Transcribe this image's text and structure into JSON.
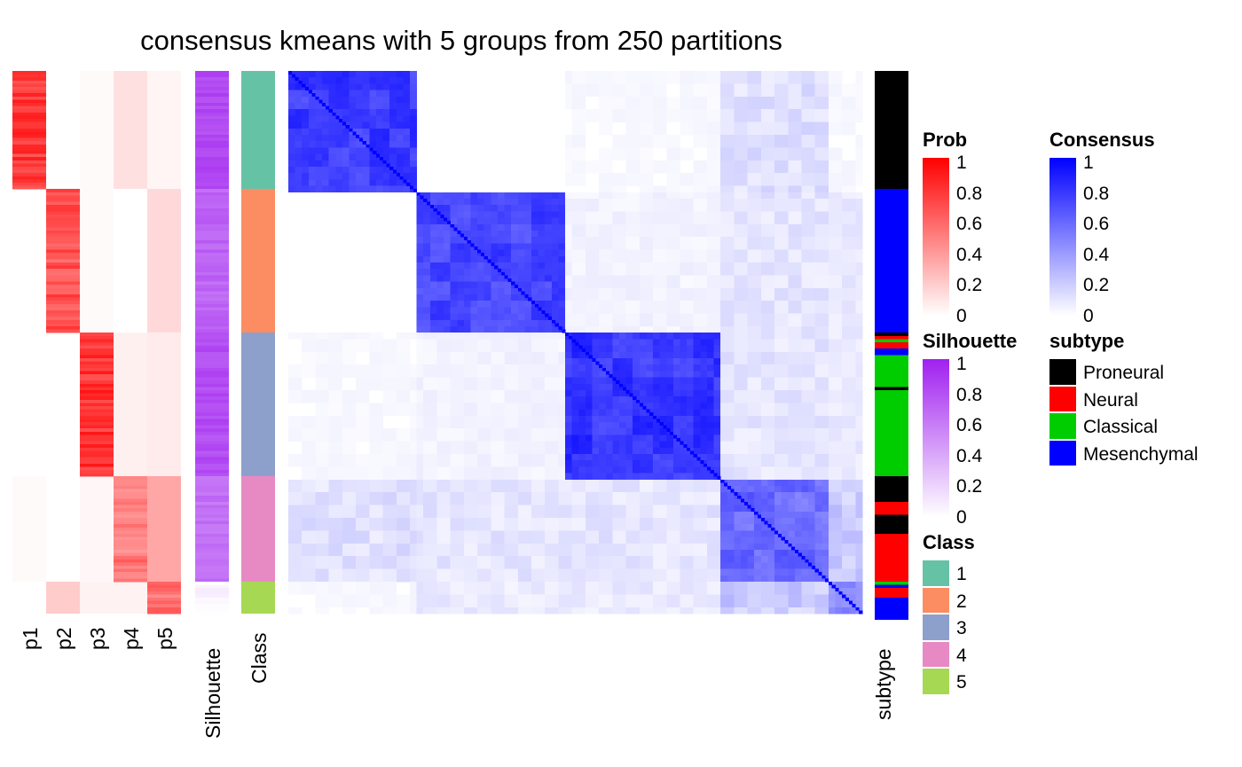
{
  "title": "consensus kmeans with 5 groups from 250 partitions",
  "chart_data": {
    "type": "heatmap",
    "title": "consensus kmeans with 5 groups from 250 partitions",
    "n_samples": 170,
    "class_sizes": [
      37,
      45,
      45,
      33,
      10
    ],
    "class_colors": [
      "#66C2A5",
      "#FC8D62",
      "#8DA0CB",
      "#E78AC3",
      "#A6D854"
    ],
    "prob_columns": [
      "p1",
      "p2",
      "p3",
      "p4",
      "p5"
    ],
    "prob_per_class": [
      [
        0.9,
        0.0,
        0.02,
        0.12,
        0.04
      ],
      [
        0.0,
        0.8,
        0.02,
        0.0,
        0.15
      ],
      [
        0.0,
        0.0,
        0.92,
        0.06,
        0.08
      ],
      [
        0.02,
        0.0,
        0.03,
        0.65,
        0.35
      ],
      [
        0.0,
        0.2,
        0.05,
        0.05,
        0.7
      ]
    ],
    "silhouette_per_class": [
      0.88,
      0.75,
      0.86,
      0.7,
      0.1
    ],
    "consensus_within_class": [
      0.82,
      0.78,
      0.85,
      0.65,
      0.5
    ],
    "side_labels": [
      "p1",
      "p2",
      "p3",
      "p4",
      "p5",
      "Silhouette",
      "Class"
    ],
    "subtype_label": "subtype",
    "subtype_segments": [
      {
        "subtype": "Proneural",
        "n": 37
      },
      {
        "subtype": "Mesenchymal",
        "n": 45
      },
      {
        "subtype": "Proneural",
        "n": 1
      },
      {
        "subtype": "Neural",
        "n": 1
      },
      {
        "subtype": "Classical",
        "n": 1
      },
      {
        "subtype": "Neural",
        "n": 2
      },
      {
        "subtype": "Mesenchymal",
        "n": 2
      },
      {
        "subtype": "Classical",
        "n": 10
      },
      {
        "subtype": "Proneural",
        "n": 1
      },
      {
        "subtype": "Classical",
        "n": 27
      },
      {
        "subtype": "Proneural",
        "n": 8
      },
      {
        "subtype": "Neural",
        "n": 4
      },
      {
        "subtype": "Proneural",
        "n": 6
      },
      {
        "subtype": "Neural",
        "n": 15
      },
      {
        "subtype": "Classical",
        "n": 1
      },
      {
        "subtype": "Mesenchymal",
        "n": 1
      },
      {
        "subtype": "Neural",
        "n": 3
      },
      {
        "subtype": "Mesenchymal",
        "n": 7
      }
    ]
  },
  "legends": {
    "prob": {
      "title": "Prob",
      "ticks": [
        "1",
        "0.8",
        "0.6",
        "0.4",
        "0.2",
        "0"
      ],
      "colors": [
        "#FF0000",
        "#FFFFFF"
      ]
    },
    "consensus": {
      "title": "Consensus",
      "ticks": [
        "1",
        "0.8",
        "0.6",
        "0.4",
        "0.2",
        "0"
      ],
      "colors": [
        "#0000FF",
        "#FFFFFF"
      ]
    },
    "silhouette": {
      "title": "Silhouette",
      "ticks": [
        "1",
        "0.8",
        "0.6",
        "0.4",
        "0.2",
        "0"
      ],
      "colors": [
        "#A020F0",
        "#FFFFFF"
      ]
    },
    "subtype": {
      "title": "subtype",
      "items": [
        {
          "label": "Proneural",
          "color": "#000000"
        },
        {
          "label": "Neural",
          "color": "#FF0000"
        },
        {
          "label": "Classical",
          "color": "#00CD00"
        },
        {
          "label": "Mesenchymal",
          "color": "#0000FF"
        }
      ]
    },
    "class": {
      "title": "Class",
      "items": [
        {
          "label": "1",
          "color": "#66C2A5"
        },
        {
          "label": "2",
          "color": "#FC8D62"
        },
        {
          "label": "3",
          "color": "#8DA0CB"
        },
        {
          "label": "4",
          "color": "#E78AC3"
        },
        {
          "label": "5",
          "color": "#A6D854"
        }
      ]
    }
  }
}
